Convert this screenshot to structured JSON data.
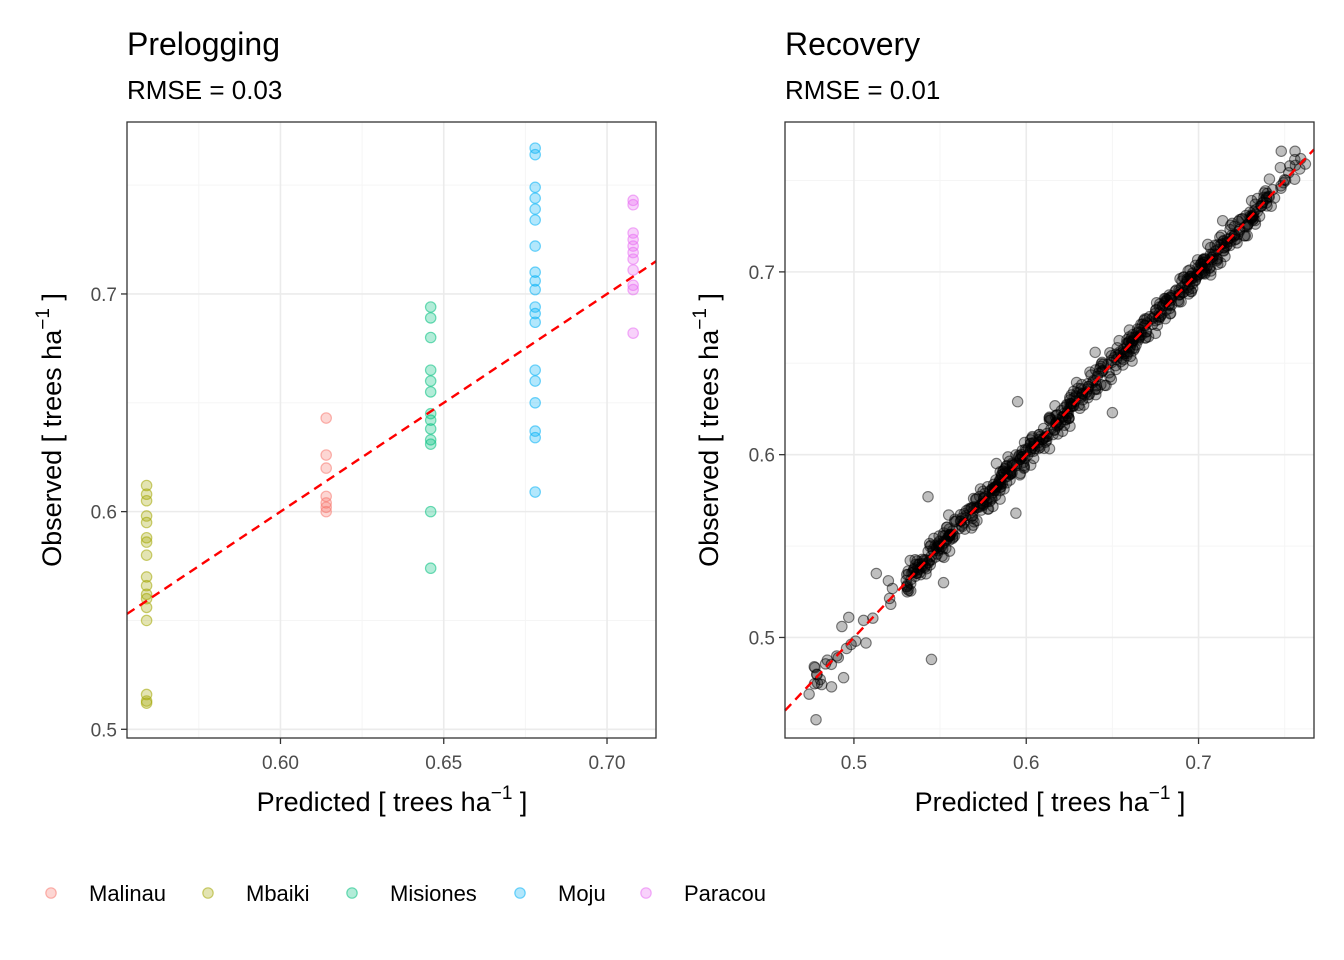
{
  "chart_data": [
    {
      "type": "scatter",
      "title": "Prelogging",
      "subtitle": "RMSE = 0.03",
      "xlabel": "Predicted [ trees ha",
      "ylabel": "Observed [ trees ha",
      "unit_superscript": "−1",
      "unit_close": " ]",
      "xlim": [
        0.553,
        0.715
      ],
      "ylim": [
        0.496,
        0.779
      ],
      "xticks": [
        0.6,
        0.65,
        0.7
      ],
      "xtick_labels": [
        "0.60",
        "0.65",
        "0.70"
      ],
      "yticks": [
        0.5,
        0.6,
        0.7
      ],
      "ytick_labels": [
        "0.5",
        "0.6",
        "0.7"
      ],
      "reference_line": "y = x",
      "series": [
        {
          "name": "Malinau",
          "color": "#F8766D",
          "x": 0.614,
          "y": [
            0.643,
            0.626,
            0.62,
            0.607,
            0.604,
            0.602,
            0.6
          ]
        },
        {
          "name": "Mbaiki",
          "color": "#A3A500",
          "x": 0.559,
          "y": [
            0.612,
            0.608,
            0.605,
            0.598,
            0.595,
            0.588,
            0.586,
            0.58,
            0.57,
            0.566,
            0.562,
            0.56,
            0.556,
            0.55,
            0.516,
            0.513,
            0.512
          ]
        },
        {
          "name": "Misiones",
          "color": "#00BF7D",
          "x": 0.646,
          "y": [
            0.694,
            0.689,
            0.68,
            0.665,
            0.66,
            0.655,
            0.645,
            0.642,
            0.638,
            0.633,
            0.631,
            0.6,
            0.574
          ]
        },
        {
          "name": "Moju",
          "color": "#00B0F6",
          "x": 0.678,
          "y": [
            0.767,
            0.764,
            0.749,
            0.744,
            0.739,
            0.734,
            0.722,
            0.71,
            0.706,
            0.702,
            0.694,
            0.691,
            0.687,
            0.665,
            0.66,
            0.65,
            0.637,
            0.634,
            0.609
          ]
        },
        {
          "name": "Paracou",
          "color": "#E76BF3",
          "x": 0.708,
          "y": [
            0.743,
            0.741,
            0.728,
            0.725,
            0.722,
            0.719,
            0.716,
            0.711,
            0.704,
            0.702,
            0.682
          ]
        }
      ]
    },
    {
      "type": "scatter",
      "title": "Recovery",
      "subtitle": "RMSE = 0.01",
      "xlabel": "Predicted [ trees ha",
      "ylabel": "Observed [ trees ha",
      "unit_superscript": "−1",
      "unit_close": " ]",
      "xlim": [
        0.46,
        0.767
      ],
      "ylim": [
        0.445,
        0.782
      ],
      "xticks": [
        0.5,
        0.6,
        0.7
      ],
      "xtick_labels": [
        "0.5",
        "0.6",
        "0.7"
      ],
      "yticks": [
        0.5,
        0.6,
        0.7
      ],
      "ytick_labels": [
        "0.5",
        "0.6",
        "0.7"
      ],
      "reference_line": "y = x",
      "point_color": "#000000",
      "n_points": 700,
      "x_range": [
        0.475,
        0.765
      ],
      "noise_sd": 0.004,
      "outliers": [
        {
          "x": 0.478,
          "y": 0.455
        },
        {
          "x": 0.474,
          "y": 0.469
        },
        {
          "x": 0.477,
          "y": 0.484
        },
        {
          "x": 0.487,
          "y": 0.473
        },
        {
          "x": 0.494,
          "y": 0.478
        },
        {
          "x": 0.497,
          "y": 0.511
        },
        {
          "x": 0.493,
          "y": 0.506
        },
        {
          "x": 0.501,
          "y": 0.498
        },
        {
          "x": 0.507,
          "y": 0.497
        },
        {
          "x": 0.545,
          "y": 0.488
        },
        {
          "x": 0.513,
          "y": 0.535
        },
        {
          "x": 0.52,
          "y": 0.531
        },
        {
          "x": 0.552,
          "y": 0.53
        },
        {
          "x": 0.543,
          "y": 0.577
        },
        {
          "x": 0.555,
          "y": 0.567
        },
        {
          "x": 0.594,
          "y": 0.568
        },
        {
          "x": 0.595,
          "y": 0.629
        },
        {
          "x": 0.65,
          "y": 0.623
        },
        {
          "x": 0.64,
          "y": 0.656
        },
        {
          "x": 0.695,
          "y": 0.701
        },
        {
          "x": 0.714,
          "y": 0.728
        },
        {
          "x": 0.731,
          "y": 0.731
        },
        {
          "x": 0.743,
          "y": 0.745
        },
        {
          "x": 0.748,
          "y": 0.766
        },
        {
          "x": 0.756,
          "y": 0.766
        },
        {
          "x": 0.762,
          "y": 0.759
        }
      ]
    }
  ],
  "legend": {
    "position": "bottom-left",
    "items": [
      {
        "label": "Malinau",
        "color": "#F8766D"
      },
      {
        "label": "Mbaiki",
        "color": "#A3A500"
      },
      {
        "label": "Misiones",
        "color": "#00BF7D"
      },
      {
        "label": "Moju",
        "color": "#00B0F6"
      },
      {
        "label": "Paracou",
        "color": "#E76BF3"
      }
    ]
  },
  "colors": {
    "reference_line": "#ff0000",
    "panel_border": "#333333",
    "grid_major": "#ebebeb",
    "grid_minor": "#f5f5f5"
  }
}
